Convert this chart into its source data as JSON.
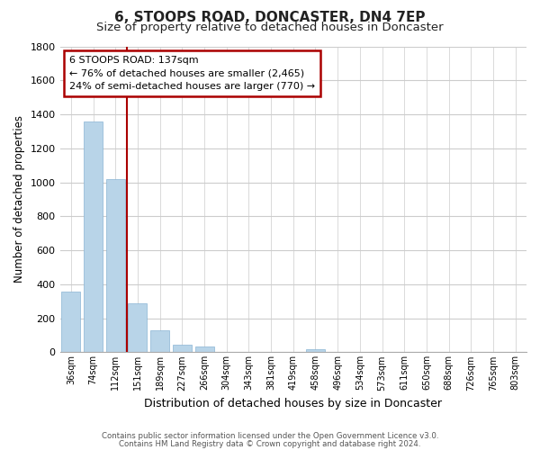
{
  "title": "6, STOOPS ROAD, DONCASTER, DN4 7EP",
  "subtitle": "Size of property relative to detached houses in Doncaster",
  "xlabel": "Distribution of detached houses by size in Doncaster",
  "ylabel": "Number of detached properties",
  "bar_labels": [
    "36sqm",
    "74sqm",
    "112sqm",
    "151sqm",
    "189sqm",
    "227sqm",
    "266sqm",
    "304sqm",
    "343sqm",
    "381sqm",
    "419sqm",
    "458sqm",
    "496sqm",
    "534sqm",
    "573sqm",
    "611sqm",
    "650sqm",
    "688sqm",
    "726sqm",
    "765sqm",
    "803sqm"
  ],
  "bar_values": [
    355,
    1360,
    1020,
    290,
    130,
    45,
    35,
    0,
    0,
    0,
    0,
    20,
    0,
    0,
    0,
    0,
    0,
    0,
    0,
    0,
    0
  ],
  "bar_color": "#b8d4e8",
  "vline_color": "#aa0000",
  "vline_pos": 2.5,
  "ylim": [
    0,
    1800
  ],
  "yticks": [
    0,
    200,
    400,
    600,
    800,
    1000,
    1200,
    1400,
    1600,
    1800
  ],
  "annotation_title": "6 STOOPS ROAD: 137sqm",
  "annotation_line1": "← 76% of detached houses are smaller (2,465)",
  "annotation_line2": "24% of semi-detached houses are larger (770) →",
  "annotation_box_color": "#ffffff",
  "annotation_box_edge": "#aa0000",
  "footer_line1": "Contains HM Land Registry data © Crown copyright and database right 2024.",
  "footer_line2": "Contains public sector information licensed under the Open Government Licence v3.0.",
  "bg_color": "#ffffff",
  "grid_color": "#cccccc",
  "title_fontsize": 11,
  "subtitle_fontsize": 9.5
}
